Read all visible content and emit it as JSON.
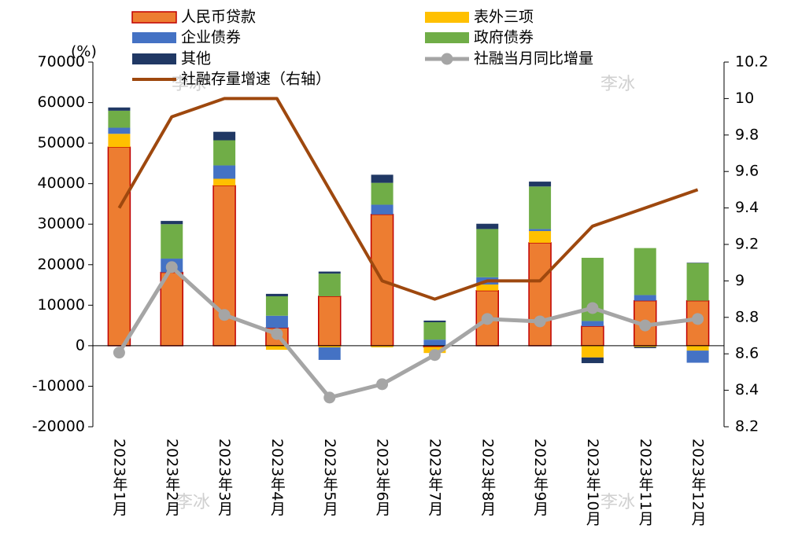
{
  "chart_data": {
    "type": "bar",
    "categories": [
      "2023年1月",
      "2023年2月",
      "2023年3月",
      "2023年4月",
      "2023年5月",
      "2023年6月",
      "2023年7月",
      "2023年8月",
      "2023年9月",
      "2023年10月",
      "2023年11月",
      "2023年12月"
    ],
    "y_label": "(%)",
    "watermark": "李冰",
    "series": [
      {
        "name": "人民币贷款",
        "type": "bar",
        "color": "#ED7D31",
        "edge_color": "#C00000",
        "values": [
          49000,
          18100,
          39500,
          4400,
          12200,
          32400,
          -300,
          13600,
          25400,
          4800,
          11100,
          11100
        ]
      },
      {
        "name": "表外三项",
        "type": "bar",
        "color": "#FFC000",
        "values": [
          3300,
          0,
          1700,
          -1000,
          -400,
          -400,
          -1500,
          1500,
          2900,
          -2900,
          -300,
          -1200
        ]
      },
      {
        "name": "企业债券",
        "type": "bar",
        "color": "#4472C4",
        "values": [
          1500,
          3400,
          3300,
          3000,
          -3100,
          2400,
          1500,
          1800,
          500,
          1300,
          1400,
          -3000
        ]
      },
      {
        "name": "政府债券",
        "type": "bar",
        "color": "#70AD47",
        "values": [
          4200,
          8500,
          6200,
          4800,
          5600,
          5400,
          4300,
          11900,
          10500,
          15600,
          11600,
          9300
        ]
      },
      {
        "name": "其他",
        "type": "bar",
        "color": "#203864",
        "values": [
          800,
          800,
          2100,
          600,
          500,
          2000,
          400,
          1300,
          1200,
          -1400,
          -300,
          100
        ]
      },
      {
        "name": "社融当月同比增量",
        "type": "line",
        "color": "#A5A5A5",
        "marker": true,
        "values": [
          -1700,
          19400,
          7600,
          2900,
          -12800,
          -9500,
          -2300,
          6600,
          6000,
          9300,
          5000,
          6600
        ]
      },
      {
        "name": "社融存量增速（右轴）",
        "type": "line",
        "axis": "y2",
        "color": "#9E480E",
        "marker": false,
        "values": [
          9.4,
          9.9,
          10.0,
          10.0,
          9.5,
          9.0,
          8.9,
          9.0,
          9.0,
          9.3,
          9.4,
          9.5
        ]
      }
    ],
    "ylim": [
      -20000,
      70000
    ],
    "yticks": [
      -20000,
      -10000,
      0,
      10000,
      20000,
      30000,
      40000,
      50000,
      60000,
      70000
    ],
    "y2lim": [
      8.2,
      10.2
    ],
    "y2ticks": [
      8.2,
      8.4,
      8.6,
      8.8,
      9,
      9.2,
      9.4,
      9.6,
      9.8,
      10,
      10.2
    ],
    "grid": false
  }
}
